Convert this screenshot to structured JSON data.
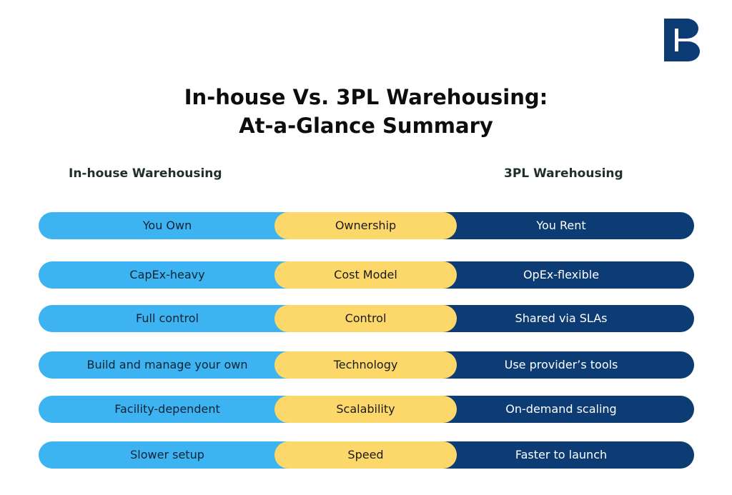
{
  "title_line1": "In-house Vs. 3PL Warehousing:",
  "title_line2": "At-a-Glance Summary",
  "left_heading": "In-house Warehousing",
  "right_heading": "3PL Warehousing",
  "colors": {
    "left": "#3db3f1",
    "middle": "#fcd86a",
    "right": "#0d3b74",
    "logo": "#0d3b74"
  },
  "rows": [
    {
      "left": "You Own",
      "middle": "Ownership",
      "right": "You Rent"
    },
    {
      "left": "CapEx-heavy",
      "middle": "Cost Model",
      "right": "OpEx-flexible"
    },
    {
      "left": "Full control",
      "middle": "Control",
      "right": "Shared via SLAs"
    },
    {
      "left": "Build and manage your own",
      "middle": "Technology",
      "right": "Use provider’s tools"
    },
    {
      "left": "Facility-dependent",
      "middle": "Scalability",
      "right": "On-demand scaling"
    },
    {
      "left": "Slower setup",
      "middle": "Speed",
      "right": "Faster to launch"
    }
  ]
}
